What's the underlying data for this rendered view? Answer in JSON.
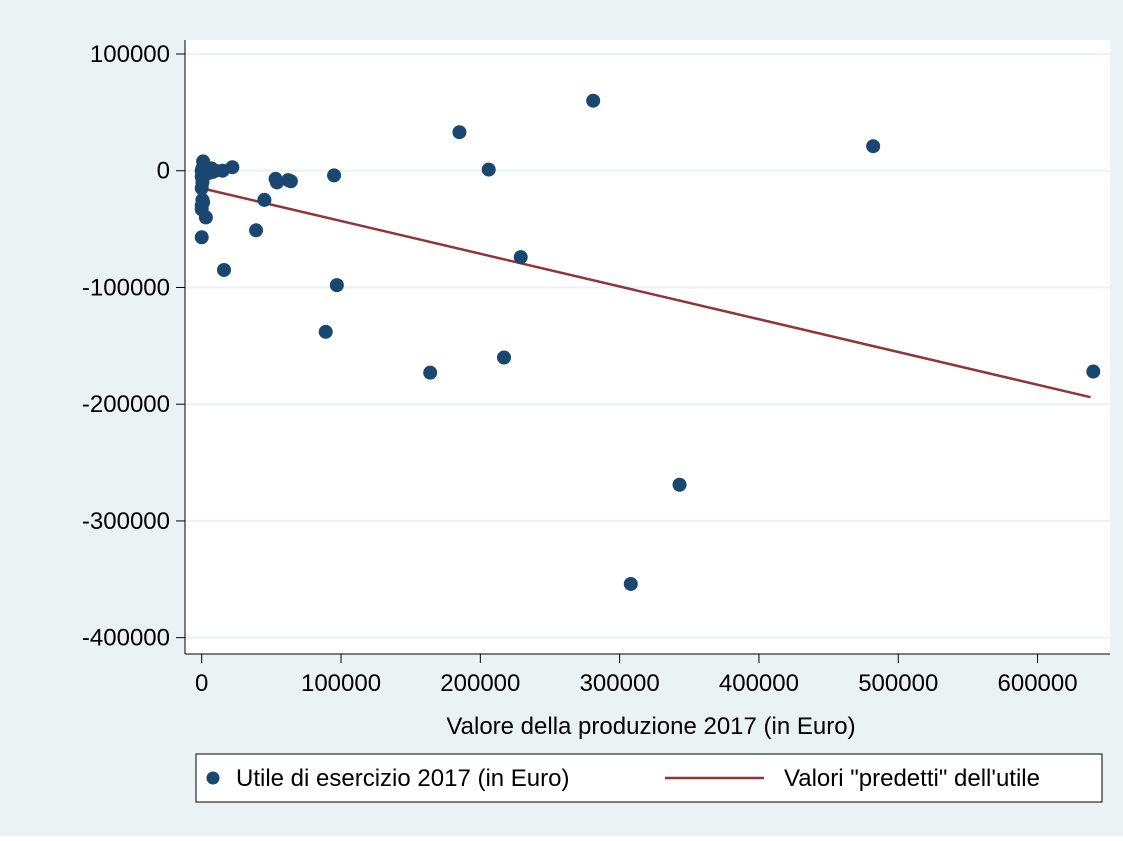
{
  "colors": {
    "outer_background": "#eaf2f3",
    "plot_background": "#ffffff",
    "grid": "#eaf2f3",
    "marker": "#1a476f",
    "fit_line": "#90353b"
  },
  "chart_data": {
    "type": "scatter",
    "xlabel": "Valore della produzione 2017 (in Euro)",
    "ylabel": "",
    "xlim": [
      -12000,
      652000
    ],
    "ylim": [
      -414000,
      112000
    ],
    "x_ticks": [
      0,
      100000,
      200000,
      300000,
      400000,
      500000,
      600000
    ],
    "x_tick_labels": [
      "0",
      "100000",
      "200000",
      "300000",
      "400000",
      "500000",
      "600000"
    ],
    "y_ticks": [
      100000,
      0,
      -100000,
      -200000,
      -300000,
      -400000
    ],
    "y_tick_labels": [
      "100000",
      "0",
      "-100000",
      "-200000",
      "-300000",
      "-400000"
    ],
    "grid": "horizontal",
    "legend_position": "bottom",
    "series": [
      {
        "name": "Utile di esercizio 2017 (in Euro)",
        "kind": "scatter",
        "points": [
          [
            1000,
            8000
          ],
          [
            500,
            2000
          ],
          [
            0,
            0
          ],
          [
            0,
            -5000
          ],
          [
            500,
            -10000
          ],
          [
            0,
            -15000
          ],
          [
            500,
            -25000
          ],
          [
            0,
            -30000
          ],
          [
            0,
            -33000
          ],
          [
            1000,
            -27000
          ],
          [
            3000,
            -40000
          ],
          [
            0,
            -57000
          ],
          [
            2000,
            -3000
          ],
          [
            3000,
            -1000
          ],
          [
            4000,
            1000
          ],
          [
            5000,
            -2000
          ],
          [
            6000,
            0
          ],
          [
            7000,
            2000
          ],
          [
            8000,
            -1000
          ],
          [
            10000,
            0
          ],
          [
            15000,
            0
          ],
          [
            22000,
            3000
          ],
          [
            16000,
            -85000
          ],
          [
            39000,
            -51000
          ],
          [
            45000,
            -25000
          ],
          [
            53000,
            -7000
          ],
          [
            54000,
            -10000
          ],
          [
            62000,
            -8000
          ],
          [
            64000,
            -9000
          ],
          [
            95000,
            -4000
          ],
          [
            89000,
            -138000
          ],
          [
            97000,
            -98000
          ],
          [
            164000,
            -173000
          ],
          [
            185000,
            33000
          ],
          [
            206000,
            1000
          ],
          [
            217000,
            -160000
          ],
          [
            229000,
            -74000
          ],
          [
            281000,
            60000
          ],
          [
            308000,
            -354000
          ],
          [
            343000,
            -269000
          ],
          [
            482000,
            21000
          ],
          [
            640000,
            -172000
          ]
        ]
      },
      {
        "name": "Valori \"predetti\" dell'utile",
        "kind": "line",
        "points": [
          [
            0,
            -15000
          ],
          [
            638000,
            -194000
          ]
        ]
      }
    ]
  }
}
